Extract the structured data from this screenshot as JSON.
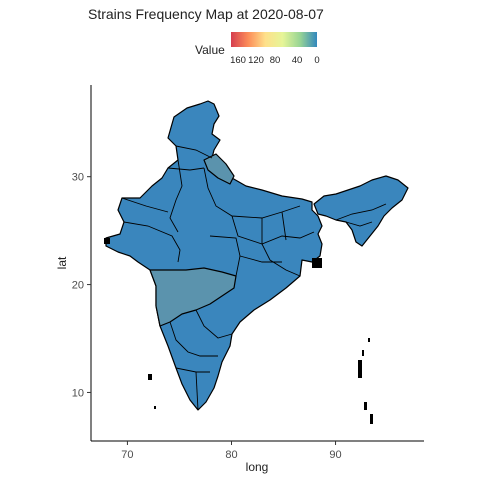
{
  "title": "Strains Frequency Map at  2020-08-07",
  "legend": {
    "title": "Value",
    "tick_labels": [
      "160",
      "120",
      "80",
      "40",
      "0"
    ],
    "colors": [
      "#d53e4f",
      "#fc8d59",
      "#fee08b",
      "#e6f598",
      "#99d594",
      "#3288bd"
    ]
  },
  "chart_data": {
    "type": "choropleth",
    "xlabel": "long",
    "ylabel": "lat",
    "xlim": [
      66.5,
      98.5
    ],
    "ylim": [
      5.5,
      38.5
    ],
    "x_ticks": [
      70,
      80,
      90
    ],
    "y_ticks": [
      10,
      20,
      30
    ],
    "value_range": [
      0,
      160
    ],
    "base_fill": "#3a86bd",
    "highlight_fill": "#5b93ad",
    "grid": false,
    "legend_position": "top"
  }
}
